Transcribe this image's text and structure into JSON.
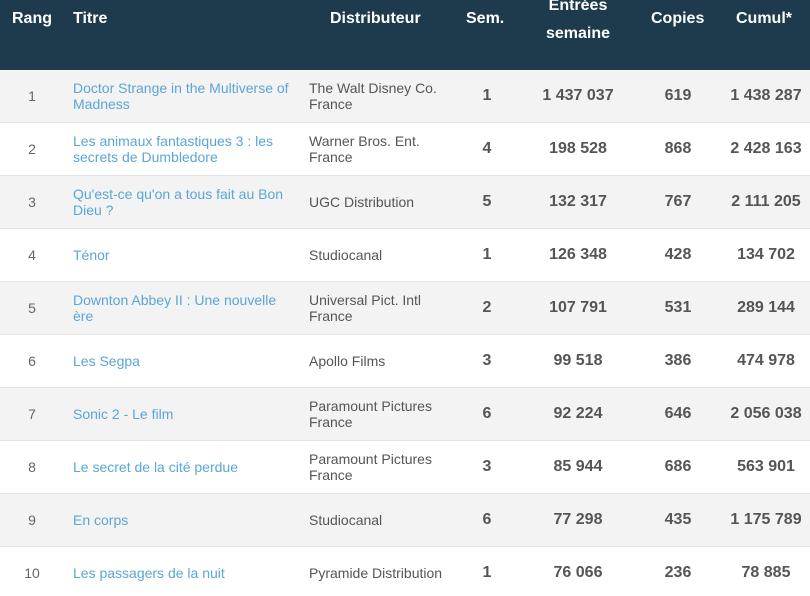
{
  "header": {
    "rang": "Rang",
    "titre": "Titre",
    "distributeur": "Distributeur",
    "sem": "Sem.",
    "entrees_line1": "Entrées",
    "entrees_line2": "semaine",
    "copies": "Copies",
    "cumul": "Cumul*"
  },
  "rows": [
    {
      "rang": "1",
      "titre": "Doctor Strange in the Multiverse of Madness",
      "distributeur": "The Walt Disney Co. France",
      "sem": "1",
      "entrees": "1 437 037",
      "copies": "619",
      "cumul": "1 438 287"
    },
    {
      "rang": "2",
      "titre": "Les animaux fantastiques 3 : les secrets de Dumbledore",
      "distributeur": "Warner Bros. Ent. France",
      "sem": "4",
      "entrees": "198 528",
      "copies": "868",
      "cumul": "2 428 163"
    },
    {
      "rang": "3",
      "titre": "Qu'est-ce qu'on a tous fait au Bon Dieu ?",
      "distributeur": "UGC Distribution",
      "sem": "5",
      "entrees": "132 317",
      "copies": "767",
      "cumul": "2 111 205"
    },
    {
      "rang": "4",
      "titre": "Ténor",
      "distributeur": "Studiocanal",
      "sem": "1",
      "entrees": "126 348",
      "copies": "428",
      "cumul": "134 702"
    },
    {
      "rang": "5",
      "titre": "Downton Abbey II : Une nouvelle ère",
      "distributeur": "Universal Pict. Intl France",
      "sem": "2",
      "entrees": "107 791",
      "copies": "531",
      "cumul": "289 144"
    },
    {
      "rang": "6",
      "titre": "Les Segpa",
      "distributeur": "Apollo Films",
      "sem": "3",
      "entrees": "99 518",
      "copies": "386",
      "cumul": "474 978"
    },
    {
      "rang": "7",
      "titre": "Sonic 2 - Le film",
      "distributeur": "Paramount Pictures France",
      "sem": "6",
      "entrees": "92 224",
      "copies": "646",
      "cumul": "2 056 038"
    },
    {
      "rang": "8",
      "titre": "Le secret de la cité perdue",
      "distributeur": "Paramount Pictures France",
      "sem": "3",
      "entrees": "85 944",
      "copies": "686",
      "cumul": "563 901"
    },
    {
      "rang": "9",
      "titre": "En corps",
      "distributeur": "Studiocanal",
      "sem": "6",
      "entrees": "77 298",
      "copies": "435",
      "cumul": "1 175 789"
    },
    {
      "rang": "10",
      "titre": "Les passagers de la nuit",
      "distributeur": "Pyramide Distribution",
      "sem": "1",
      "entrees": "76 066",
      "copies": "236",
      "cumul": "78 885"
    }
  ]
}
